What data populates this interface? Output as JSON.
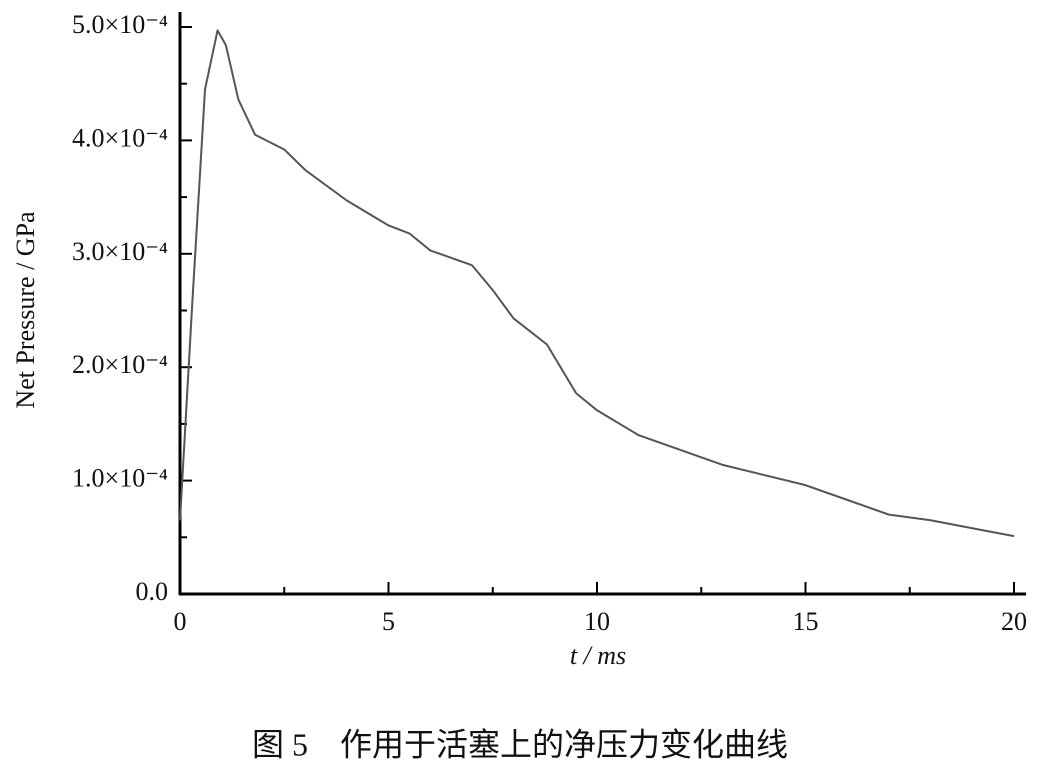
{
  "chart_data": {
    "type": "line",
    "caption": "图 5　作用于活塞上的净压力变化曲线",
    "x_label": "t / ms",
    "y_label": "Net Pressure / GPa",
    "x": [
      0,
      0.3,
      0.6,
      0.9,
      1.1,
      1.4,
      1.8,
      2.5,
      3,
      4,
      5,
      5.5,
      6,
      7,
      7.5,
      8,
      8.8,
      9.5,
      10,
      11,
      12,
      13,
      14,
      15,
      16,
      17,
      18,
      19,
      20
    ],
    "series": [
      {
        "color": "#555555",
        "values": [
          6.5e-05,
          0.00026,
          0.000445,
          0.000497,
          0.000484,
          0.000436,
          0.000405,
          0.000392,
          0.000374,
          0.000347,
          0.000325,
          0.000318,
          0.000303,
          0.00029,
          0.000268,
          0.000243,
          0.00022,
          0.000177,
          0.000162,
          0.00014,
          0.000127,
          0.000114,
          0.000105,
          9.6e-05,
          8.3e-05,
          7e-05,
          6.5e-05,
          5.8e-05,
          5.1e-05
        ]
      }
    ],
    "xlim": [
      0,
      20
    ],
    "xticks": [
      0,
      5,
      10,
      15,
      20
    ],
    "xminorticks": [
      2.5,
      7.5,
      12.5,
      17.5
    ],
    "ylim": [
      0,
      0.0005
    ],
    "yticks": [
      {
        "value": 0,
        "label": "0.0"
      },
      {
        "value": 0.0001,
        "label": "1.0×10⁻⁴"
      },
      {
        "value": 0.0002,
        "label": "2.0×10⁻⁴"
      },
      {
        "value": 0.0003,
        "label": "3.0×10⁻⁴"
      },
      {
        "value": 0.0004,
        "label": "4.0×10⁻⁴"
      },
      {
        "value": 0.0005,
        "label": "5.0×10⁻⁴"
      }
    ],
    "yminorticks": [
      5e-05,
      0.00015,
      0.00025,
      0.00035,
      0.00045
    ],
    "grid": false
  }
}
